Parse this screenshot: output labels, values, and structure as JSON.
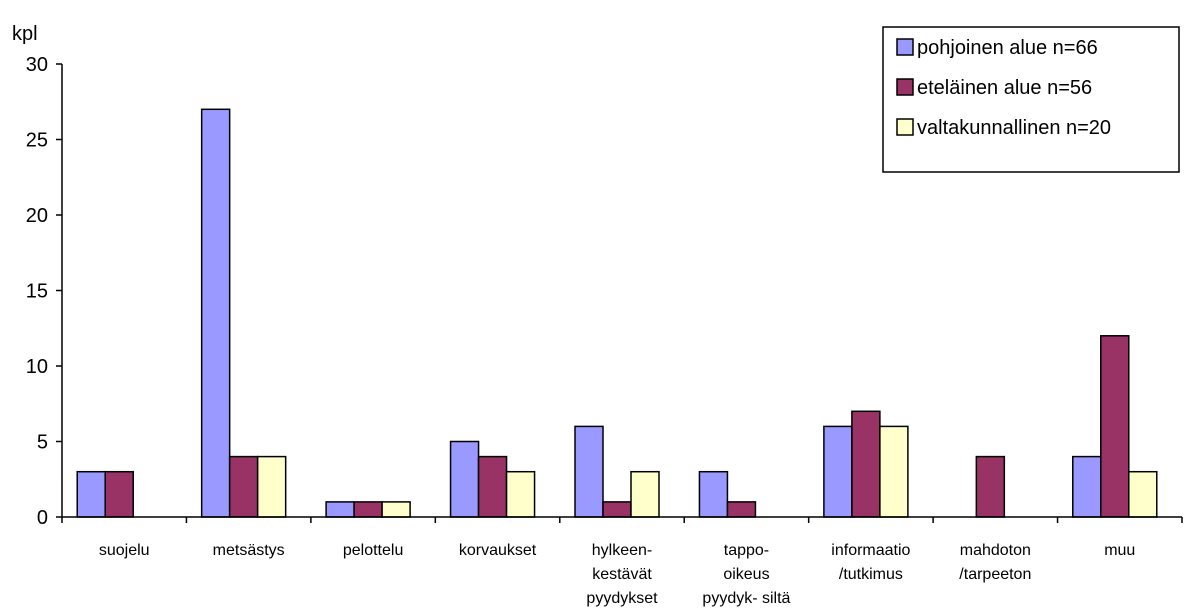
{
  "chart_data": {
    "type": "bar",
    "ylabel": "kpl",
    "ylim": [
      0,
      30
    ],
    "yticks": [
      0,
      5,
      10,
      15,
      20,
      25,
      30
    ],
    "grid": false,
    "legend_position": "top-right",
    "categories": [
      [
        "suojelu"
      ],
      [
        "metsästys"
      ],
      [
        "pelottelu"
      ],
      [
        "korvaukset"
      ],
      [
        "hylkeen-",
        "kestävät",
        "pyydykset"
      ],
      [
        "tappo-",
        "oikeus",
        "pyydyk- siltä"
      ],
      [
        "informaatio",
        "/tutkimus"
      ],
      [
        "mahdoton",
        "/tarpeeton"
      ],
      [
        "muu"
      ]
    ],
    "series": [
      {
        "name": "pohjoinen alue n=66",
        "color": "#9999ff",
        "values": [
          3,
          27,
          1,
          5,
          6,
          3,
          6,
          0,
          4
        ]
      },
      {
        "name": "eteläinen alue n=56",
        "color": "#993366",
        "values": [
          3,
          4,
          1,
          4,
          1,
          1,
          7,
          4,
          12
        ]
      },
      {
        "name": "valtakunnallinen n=20",
        "color": "#ffffcc",
        "values": [
          0,
          4,
          1,
          3,
          3,
          0,
          6,
          0,
          3
        ]
      }
    ]
  }
}
